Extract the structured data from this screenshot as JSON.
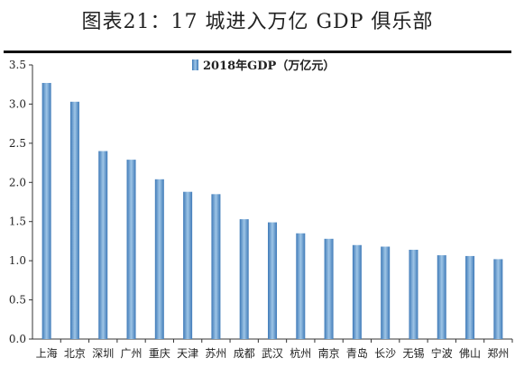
{
  "header": {
    "title": "图表21：17 城进入万亿 GDP 俱乐部"
  },
  "chart_data": {
    "type": "bar",
    "title": "图表21：17 城进入万亿 GDP 俱乐部",
    "legend": {
      "label": "2018年GDP（万亿元）",
      "placement": "top-center"
    },
    "categories": [
      "上海",
      "北京",
      "深圳",
      "广州",
      "重庆",
      "天津",
      "苏州",
      "成都",
      "武汉",
      "杭州",
      "南京",
      "青岛",
      "长沙",
      "无锡",
      "宁波",
      "佛山",
      "郑州"
    ],
    "series": [
      {
        "name": "2018年GDP（万亿元）",
        "values": [
          3.27,
          3.03,
          2.4,
          2.29,
          2.04,
          1.88,
          1.85,
          1.53,
          1.49,
          1.35,
          1.28,
          1.2,
          1.18,
          1.14,
          1.07,
          1.06,
          1.02
        ]
      }
    ],
    "ylim": [
      0,
      3.5
    ],
    "yticks": [
      "0.0",
      "0.5",
      "1.0",
      "1.5",
      "2.0",
      "2.5",
      "3.0",
      "3.5"
    ],
    "xlabel": "",
    "ylabel": "",
    "grid": false,
    "colors": {
      "bar_light": "#9ec5e6",
      "bar_dark": "#3f7ab8",
      "axis": "#333333"
    }
  }
}
